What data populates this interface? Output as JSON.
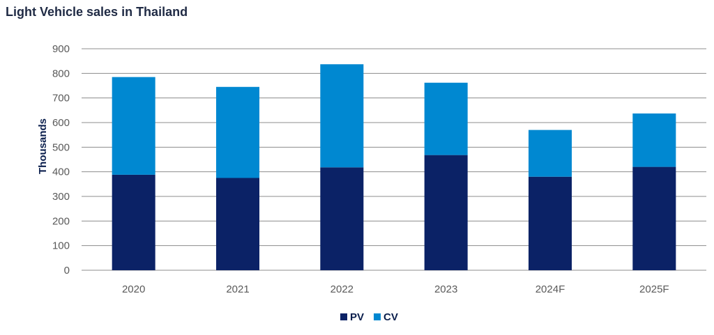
{
  "chart_data": {
    "type": "bar",
    "stacked": true,
    "title": "Light Vehicle sales in Thailand",
    "ylabel": "Thousands",
    "xlabel": "",
    "ylim": [
      0,
      900
    ],
    "yticks": [
      "0",
      "100",
      "200",
      "300",
      "400",
      "500",
      "600",
      "700",
      "800",
      "900"
    ],
    "categories": [
      "2020",
      "2021",
      "2022",
      "2023",
      "2024F",
      "2025F"
    ],
    "series": [
      {
        "name": "PV",
        "color": "#0b2266",
        "values": [
          388,
          375,
          418,
          468,
          380,
          420
        ]
      },
      {
        "name": "CV",
        "color": "#0088d1",
        "values": [
          397,
          370,
          419,
          294,
          190,
          217
        ]
      }
    ],
    "grid": true,
    "legend": "bottom-center"
  }
}
